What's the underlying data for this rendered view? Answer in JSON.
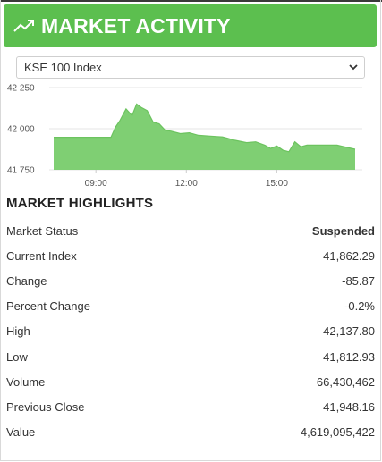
{
  "header": {
    "title": "MARKET ACTIVITY",
    "icon": "trending-up-icon",
    "color": "#5cbf4f"
  },
  "index_select": {
    "selected": "KSE 100 Index"
  },
  "chart_data": {
    "type": "area",
    "color": "#6cc35f",
    "fill": "#7fcf73",
    "y_ticks": [
      "42 250",
      "42 000",
      "41 750"
    ],
    "x_ticks": [
      "09:00",
      "12:00",
      "15:00"
    ],
    "ylim": [
      41750,
      42250
    ],
    "grid": true,
    "x": [
      7.6,
      8.9,
      9.5,
      9.65,
      9.8,
      10.0,
      10.2,
      10.35,
      10.5,
      10.7,
      10.9,
      11.1,
      11.3,
      11.5,
      11.8,
      12.1,
      12.4,
      12.8,
      13.2,
      13.6,
      14.0,
      14.3,
      14.6,
      14.8,
      15.0,
      15.2,
      15.4,
      15.6,
      15.8,
      16.0,
      16.5,
      17.0,
      17.6
    ],
    "y": [
      41948,
      41948,
      41948,
      42010,
      42050,
      42120,
      42080,
      42150,
      42130,
      42110,
      42040,
      42030,
      41990,
      41985,
      41970,
      41975,
      41960,
      41955,
      41950,
      41930,
      41915,
      41920,
      41900,
      41880,
      41895,
      41870,
      41860,
      41920,
      41890,
      41900,
      41900,
      41900,
      41875
    ]
  },
  "highlights": {
    "title": "MARKET HIGHLIGHTS",
    "rows": [
      {
        "label": "Market Status",
        "value": "Suspended"
      },
      {
        "label": "Current Index",
        "value": "41,862.29"
      },
      {
        "label": "Change",
        "value": "-85.87"
      },
      {
        "label": "Percent Change",
        "value": "-0.2%"
      },
      {
        "label": "High",
        "value": "42,137.80"
      },
      {
        "label": "Low",
        "value": "41,812.93"
      },
      {
        "label": "Volume",
        "value": "66,430,462"
      },
      {
        "label": "Previous Close",
        "value": "41,948.16"
      },
      {
        "label": "Value",
        "value": "4,619,095,422"
      }
    ]
  }
}
